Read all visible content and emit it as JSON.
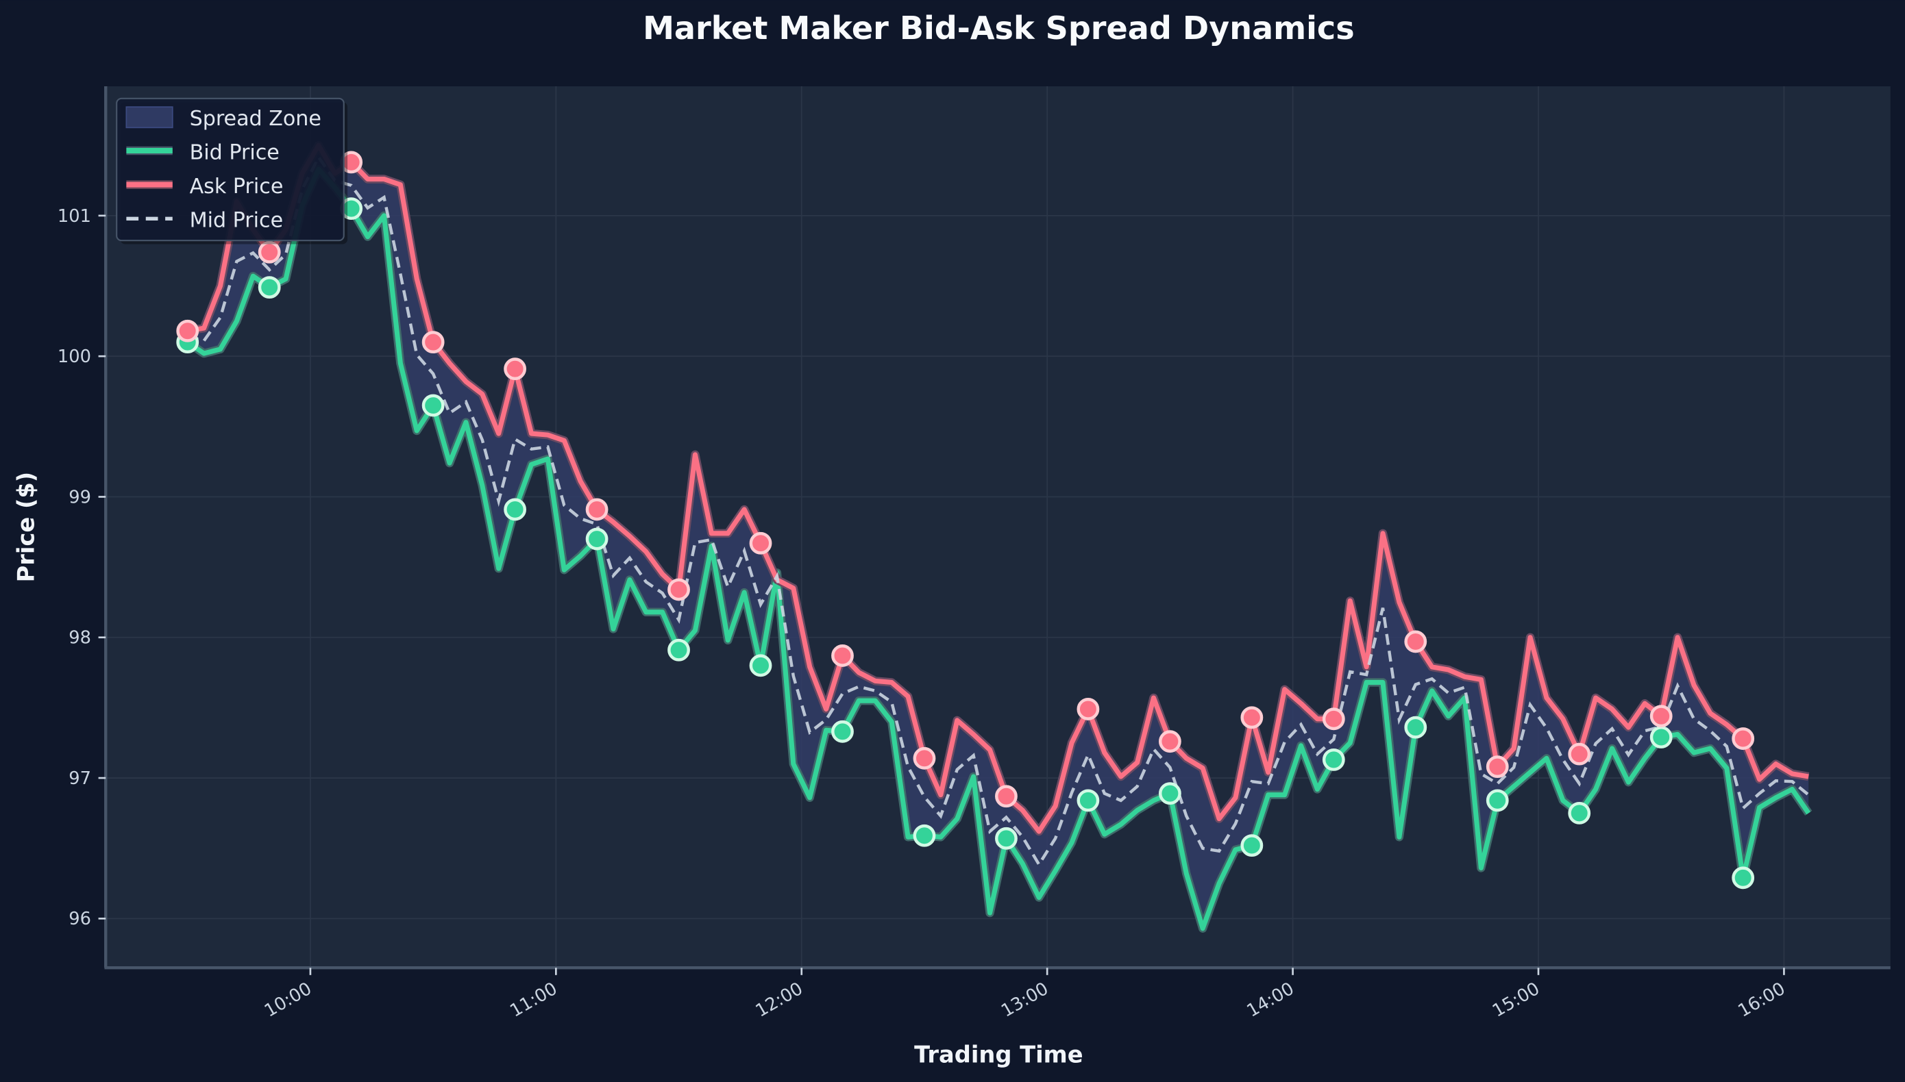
{
  "chart_data": {
    "type": "line",
    "title": "Market Maker Bid-Ask Spread Dynamics",
    "xlabel": "Trading Time",
    "ylabel": "Price ($)",
    "x_ticks": [
      "10:00",
      "11:00",
      "12:00",
      "13:00",
      "14:00",
      "15:00",
      "16:00"
    ],
    "y_ticks": [
      "96",
      "97",
      "98",
      "99",
      "100",
      "101"
    ],
    "xlim": [
      "09:10",
      "16:26"
    ],
    "ylim": [
      95.65,
      101.92
    ],
    "grid": true,
    "legend_position": "top-left",
    "legend": [
      "Spread Zone",
      "Bid Price",
      "Ask Price",
      "Mid Price"
    ],
    "marker_interval": 5,
    "x": [
      "09:30",
      "09:34",
      "09:38",
      "09:42",
      "09:46",
      "09:50",
      "09:54",
      "09:58",
      "10:02",
      "10:06",
      "10:10",
      "10:14",
      "10:18",
      "10:22",
      "10:26",
      "10:30",
      "10:34",
      "10:38",
      "10:42",
      "10:46",
      "10:50",
      "10:54",
      "10:58",
      "11:02",
      "11:06",
      "11:10",
      "11:14",
      "11:18",
      "11:22",
      "11:26",
      "11:30",
      "11:34",
      "11:38",
      "11:42",
      "11:46",
      "11:50",
      "11:54",
      "11:58",
      "12:02",
      "12:06",
      "12:10",
      "12:14",
      "12:18",
      "12:22",
      "12:26",
      "12:30",
      "12:34",
      "12:38",
      "12:42",
      "12:46",
      "12:50",
      "12:54",
      "12:58",
      "13:02",
      "13:06",
      "13:10",
      "13:14",
      "13:18",
      "13:22",
      "13:26",
      "13:30",
      "13:34",
      "13:38",
      "13:42",
      "13:46",
      "13:50",
      "13:54",
      "13:58",
      "14:02",
      "14:06",
      "14:10",
      "14:14",
      "14:18",
      "14:22",
      "14:26",
      "14:30",
      "14:34",
      "14:38",
      "14:42",
      "14:46",
      "14:50",
      "14:54",
      "14:58",
      "15:02",
      "15:06",
      "15:10",
      "15:14",
      "15:18",
      "15:22",
      "15:26",
      "15:30",
      "15:34",
      "15:38",
      "15:42",
      "15:46",
      "15:50",
      "15:54",
      "15:58",
      "16:02",
      "16:06"
    ],
    "series": [
      {
        "name": "Bid Price",
        "color": "#34d399",
        "values": [
          100.1,
          100.02,
          100.05,
          100.25,
          100.57,
          100.49,
          100.55,
          101.07,
          101.33,
          101.2,
          101.05,
          100.85,
          101.0,
          99.95,
          99.47,
          99.65,
          99.24,
          99.53,
          99.08,
          98.49,
          98.91,
          99.23,
          99.27,
          98.48,
          98.58,
          98.7,
          98.06,
          98.41,
          98.18,
          98.18,
          97.91,
          98.05,
          98.65,
          97.98,
          98.32,
          97.8,
          98.46,
          97.1,
          96.86,
          97.34,
          97.33,
          97.55,
          97.55,
          97.4,
          96.58,
          96.59,
          96.58,
          96.71,
          97.01,
          96.04,
          96.57,
          96.39,
          96.15,
          96.34,
          96.54,
          96.84,
          96.6,
          96.67,
          96.77,
          96.84,
          96.89,
          96.32,
          95.93,
          96.25,
          96.49,
          96.52,
          96.88,
          96.88,
          97.23,
          96.92,
          97.13,
          97.25,
          97.68,
          97.68,
          96.58,
          97.36,
          97.62,
          97.44,
          97.57,
          96.36,
          96.84,
          96.94,
          97.04,
          97.14,
          96.84,
          96.75,
          96.92,
          97.21,
          96.97,
          97.14,
          97.29,
          97.31,
          97.18,
          97.21,
          97.07,
          96.29,
          96.79,
          96.86,
          96.92,
          96.75
        ]
      },
      {
        "name": "Ask Price",
        "color": "#fb7185",
        "values": [
          100.18,
          100.2,
          100.5,
          101.1,
          100.9,
          100.74,
          100.9,
          101.3,
          101.5,
          101.3,
          101.38,
          101.26,
          101.26,
          101.22,
          100.55,
          100.1,
          99.95,
          99.82,
          99.73,
          99.45,
          99.91,
          99.45,
          99.44,
          99.4,
          99.11,
          98.91,
          98.82,
          98.72,
          98.61,
          98.45,
          98.34,
          99.3,
          98.74,
          98.74,
          98.91,
          98.67,
          98.41,
          98.35,
          97.79,
          97.49,
          97.87,
          97.75,
          97.69,
          97.68,
          97.58,
          97.14,
          96.88,
          97.41,
          97.31,
          97.2,
          96.87,
          96.77,
          96.62,
          96.8,
          97.25,
          97.49,
          97.18,
          97.01,
          97.11,
          97.57,
          97.26,
          97.14,
          97.07,
          96.71,
          96.86,
          97.43,
          97.04,
          97.63,
          97.53,
          97.42,
          97.42,
          98.26,
          97.79,
          98.74,
          98.25,
          97.97,
          97.79,
          97.77,
          97.72,
          97.7,
          97.08,
          97.21,
          98.0,
          97.57,
          97.42,
          97.17,
          97.57,
          97.49,
          97.36,
          97.53,
          97.44,
          98.0,
          97.66,
          97.46,
          97.38,
          97.28,
          96.99,
          97.1,
          97.03,
          97.01
        ]
      },
      {
        "name": "Mid Price",
        "color": "#cbd5e1",
        "derived_from": "average of Bid Price and Ask Price"
      }
    ],
    "spread_zone": {
      "name": "Spread Zone",
      "color": "#3b4a80",
      "between": [
        "Bid Price",
        "Ask Price"
      ]
    }
  },
  "colors": {
    "background": "#0f172a",
    "plot_background": "#1e293b",
    "axis": "#475569",
    "text": "#e2e8f0"
  }
}
